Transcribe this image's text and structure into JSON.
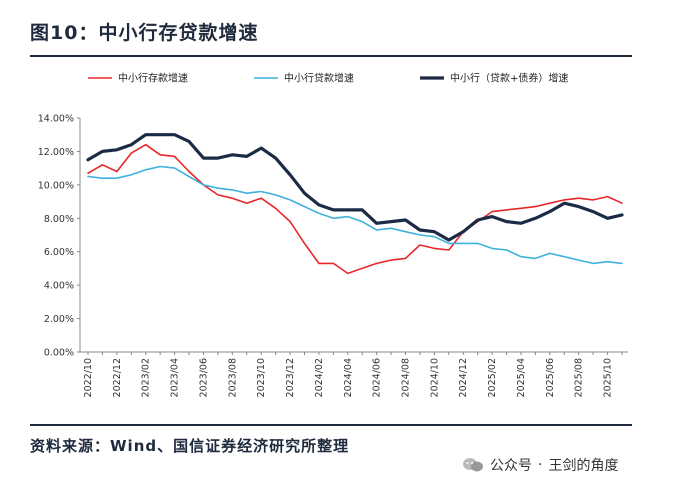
{
  "title": "图10：中小行存贷款增速",
  "source": "资料来源：Wind、国信证券经济研究所整理",
  "watermark": {
    "account": "公众号",
    "separator": "·",
    "name": "王剑的角度"
  },
  "chart_data": {
    "type": "line",
    "ylim": [
      0,
      14
    ],
    "yticks": [
      "0.00%",
      "2.00%",
      "4.00%",
      "6.00%",
      "8.00%",
      "10.00%",
      "12.00%",
      "14.00%"
    ],
    "x_tick_labels": [
      "2022/10",
      "2022/12",
      "2023/02",
      "2023/04",
      "2023/06",
      "2023/08",
      "2023/10",
      "2023/12",
      "2024/02",
      "2024/04",
      "2024/06",
      "2024/08",
      "2024/10",
      "2024/12",
      "2025/02",
      "2025/04",
      "2025/06",
      "2025/08",
      "2025/10"
    ],
    "x": [
      "2022/10",
      "2022/11",
      "2022/12",
      "2023/01",
      "2023/02",
      "2023/03",
      "2023/04",
      "2023/05",
      "2023/06",
      "2023/07",
      "2023/08",
      "2023/09",
      "2023/10",
      "2023/11",
      "2023/12",
      "2024/01",
      "2024/02",
      "2024/03",
      "2024/04",
      "2024/05",
      "2024/06",
      "2024/07",
      "2024/08",
      "2024/09",
      "2024/10",
      "2024/11",
      "2024/12",
      "2025/01",
      "2025/02",
      "2025/03",
      "2025/04",
      "2025/05",
      "2025/06",
      "2025/07",
      "2025/08",
      "2025/09",
      "2025/10",
      "2025/11"
    ],
    "series": [
      {
        "name": "中小行存款增速",
        "color": "#e8272a",
        "width": 1.6,
        "values": [
          10.7,
          11.2,
          10.8,
          11.9,
          12.4,
          11.8,
          11.7,
          10.8,
          10.0,
          9.4,
          9.2,
          8.9,
          9.2,
          8.6,
          7.8,
          6.5,
          5.3,
          5.3,
          4.7,
          5.0,
          5.3,
          5.5,
          5.6,
          6.4,
          6.2,
          6.1,
          7.2,
          7.8,
          8.4,
          8.5,
          8.6,
          8.7,
          8.9,
          9.1,
          9.2,
          9.1,
          9.3,
          8.9
        ]
      },
      {
        "name": "中小行贷款增速",
        "color": "#3fb1dc",
        "width": 1.6,
        "values": [
          10.5,
          10.4,
          10.4,
          10.6,
          10.9,
          11.1,
          11.0,
          10.5,
          10.0,
          9.8,
          9.7,
          9.5,
          9.6,
          9.4,
          9.1,
          8.7,
          8.3,
          8.0,
          8.1,
          7.8,
          7.3,
          7.4,
          7.2,
          7.0,
          6.9,
          6.5,
          6.5,
          6.5,
          6.2,
          6.1,
          5.7,
          5.6,
          5.9,
          5.7,
          5.5,
          5.3,
          5.4,
          5.3
        ]
      },
      {
        "name": "中小行（贷款+债券）增速",
        "color": "#1c2b45",
        "width": 3.2,
        "values": [
          11.5,
          12.0,
          12.1,
          12.4,
          13.0,
          13.0,
          13.0,
          12.6,
          11.6,
          11.6,
          11.8,
          11.7,
          12.2,
          11.6,
          10.6,
          9.5,
          8.8,
          8.5,
          8.5,
          8.5,
          7.7,
          7.8,
          7.9,
          7.3,
          7.2,
          6.7,
          7.2,
          7.9,
          8.1,
          7.8,
          7.7,
          8.0,
          8.4,
          8.9,
          8.7,
          8.4,
          8.0,
          8.2
        ]
      }
    ]
  }
}
